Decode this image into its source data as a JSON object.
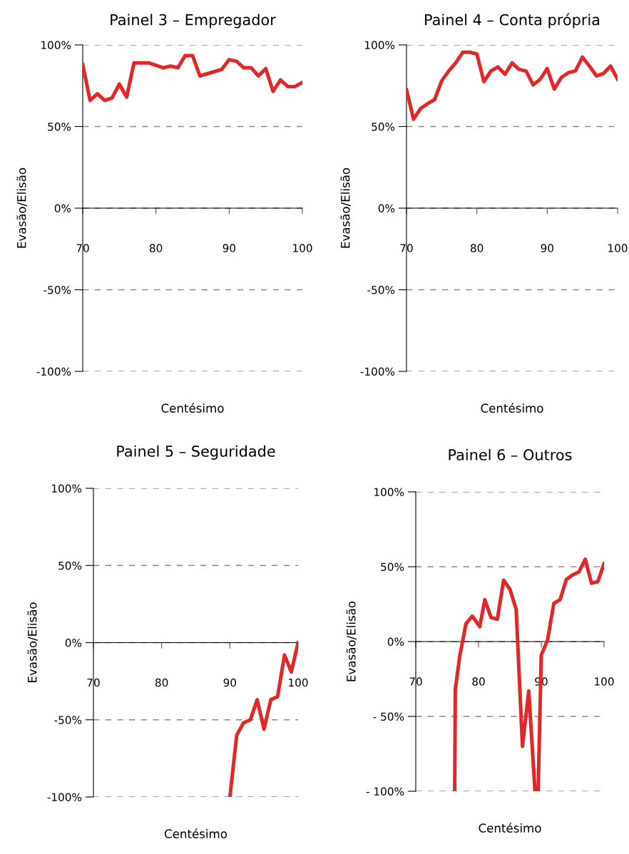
{
  "chart_data": [
    {
      "type": "line",
      "title": "Painel 3 – Empregador",
      "xlabel": "Centésimo",
      "ylabel": "Evasão/Elisão",
      "grid": "y",
      "line_style": "solid",
      "xlim": [
        70,
        100
      ],
      "xticks": [
        70,
        80,
        90,
        100
      ],
      "ylim": [
        -100,
        100
      ],
      "yticks": [
        {
          "value": 100,
          "label": "100%"
        },
        {
          "value": 50,
          "label": "50%"
        },
        {
          "value": 0,
          "label": "0%"
        },
        {
          "value": -50,
          "label": "-50%"
        },
        {
          "value": -100,
          "label": "-100%"
        }
      ],
      "x": [
        70,
        71,
        72,
        73,
        74,
        75,
        76,
        77,
        79,
        81,
        82,
        83,
        84,
        85,
        86,
        89,
        90,
        91,
        92,
        93,
        94,
        95,
        96,
        97,
        98,
        99,
        100
      ],
      "series": [
        {
          "color": "#e32726",
          "values": [
            88,
            66,
            70,
            66,
            67.5,
            76,
            68,
            89,
            89,
            86,
            87,
            86,
            93.5,
            93.5,
            81,
            85,
            91,
            90,
            86,
            86,
            81,
            85.5,
            71.5,
            78.5,
            74.5,
            74.5,
            77
          ]
        }
      ]
    },
    {
      "type": "line",
      "title": "Painel 4 – Conta própria",
      "xlabel": "Centésimo",
      "ylabel": "Evasão/Elisão",
      "grid": "y",
      "line_style": "solid",
      "xlim": [
        70,
        100
      ],
      "xticks": [
        70,
        80,
        90,
        100
      ],
      "ylim": [
        -100,
        100
      ],
      "yticks": [
        {
          "value": 100,
          "label": "100%"
        },
        {
          "value": 50,
          "label": "50%"
        },
        {
          "value": 0,
          "label": "0%"
        },
        {
          "value": -50,
          "label": "-50%"
        },
        {
          "value": -100,
          "label": "-100%"
        }
      ],
      "x": [
        70,
        71,
        72,
        73,
        74,
        75,
        76,
        77,
        78,
        79,
        80,
        81,
        82,
        83,
        84,
        85,
        86,
        87,
        88,
        89,
        90,
        91,
        92,
        93,
        94,
        95,
        96,
        97,
        98,
        99,
        100
      ],
      "series": [
        {
          "color": "#e32726",
          "values": [
            72.5,
            54.5,
            61,
            64,
            66.5,
            78,
            84,
            89,
            95.5,
            95.5,
            94.5,
            77.5,
            84,
            86.5,
            82,
            89,
            85,
            84,
            75.5,
            79,
            85.5,
            73,
            80,
            83,
            84,
            92.5,
            87,
            81,
            82.5,
            87,
            79
          ]
        }
      ]
    },
    {
      "type": "line",
      "title": "Painel 5 – Seguridade",
      "xlabel": "Centésimo",
      "ylabel": "Evasão/Elisão",
      "grid": "y",
      "line_style": "solid",
      "xlim": [
        70,
        100
      ],
      "xticks": [
        70,
        80,
        90,
        100
      ],
      "ylim": [
        -100,
        100
      ],
      "yticks": [
        {
          "value": 100,
          "label": "100%"
        },
        {
          "value": 50,
          "label": "50%"
        },
        {
          "value": 0,
          "label": "0%"
        },
        {
          "value": -50,
          "label": "-50%"
        },
        {
          "value": -100,
          "label": "-100%"
        }
      ],
      "x": [
        90,
        91,
        92,
        93,
        94,
        95,
        96,
        97,
        98,
        99,
        100
      ],
      "series": [
        {
          "color": "#e32726",
          "values": [
            -100,
            -60,
            -52,
            -50,
            -37,
            -56,
            -37,
            -35,
            -8,
            -19,
            0
          ]
        }
      ]
    },
    {
      "type": "line",
      "title": "Painel 6 – Outros",
      "xlabel": "Centésimo",
      "ylabel": "Evasão/Elisão",
      "grid": "y",
      "line_style": "solid",
      "xlim": [
        70,
        100
      ],
      "xticks": [
        70,
        80,
        90,
        100
      ],
      "ylim": [
        -100,
        100
      ],
      "yticks": [
        {
          "value": 100,
          "label": "100%"
        },
        {
          "value": 50,
          "label": "50%"
        },
        {
          "value": 0,
          "label": "0%"
        },
        {
          "value": -50,
          "label": "- 50%"
        },
        {
          "value": -100,
          "label": "- 100%"
        }
      ],
      "x": [
        76.2,
        76.3,
        77,
        78,
        79,
        80.2,
        81,
        82,
        83,
        84,
        85,
        86,
        87,
        88,
        89,
        89.5,
        90,
        91,
        92,
        93,
        94,
        95,
        96,
        97,
        98,
        99,
        100
      ],
      "series": [
        {
          "color": "#e32726",
          "values": [
            -100,
            -32,
            -10,
            12,
            17,
            10,
            28,
            16,
            15,
            41,
            35,
            21.5,
            -70,
            -33,
            -100,
            -100,
            -9,
            1,
            25.5,
            28,
            41.5,
            44.5,
            46.5,
            55,
            39,
            40,
            52
          ]
        }
      ]
    }
  ]
}
